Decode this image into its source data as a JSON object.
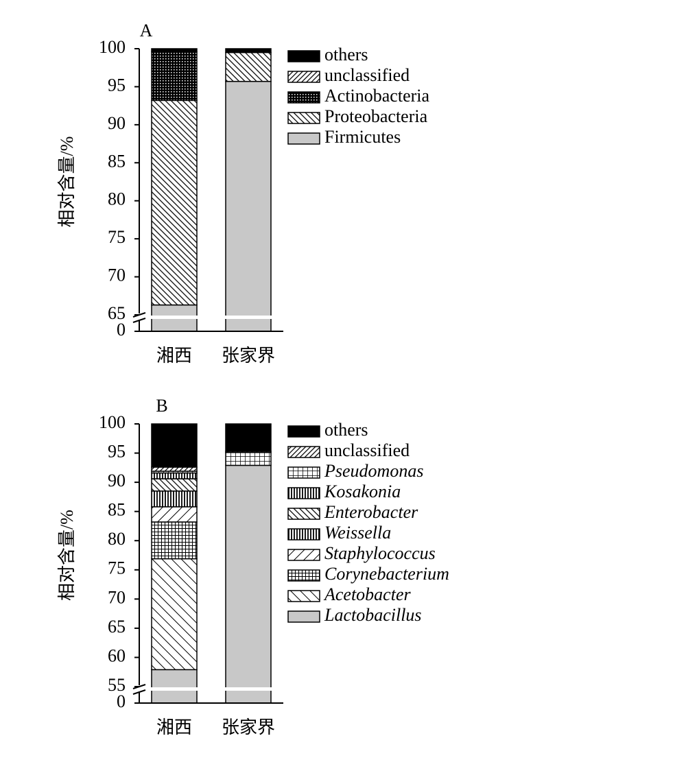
{
  "chart_data": [
    {
      "type": "bar",
      "stacked": true,
      "title": "A",
      "ylabel": "相对含量/%",
      "categories": [
        "湘西",
        "张家界"
      ],
      "ylim": [
        0,
        100
      ],
      "ybreak": [
        0,
        65
      ],
      "yticks": [
        0,
        65,
        70,
        75,
        80,
        85,
        90,
        95,
        100
      ],
      "series": [
        {
          "name": "Firmicutes",
          "color": "#c8c8c8",
          "pattern": "solid",
          "values": [
            66.3,
            95.7
          ]
        },
        {
          "name": "Proteobacteria",
          "color": "#000000",
          "pattern": "diag-down",
          "values": [
            26.9,
            3.8
          ]
        },
        {
          "name": "Actinobacteria",
          "color": "#000000",
          "pattern": "dots",
          "values": [
            6.4,
            0
          ]
        },
        {
          "name": "unclassified",
          "color": "#000000",
          "pattern": "diag-up-dense",
          "values": [
            0,
            0
          ]
        },
        {
          "name": "others",
          "color": "#000000",
          "pattern": "solid",
          "values": [
            0.4,
            0.5
          ]
        }
      ]
    },
    {
      "type": "bar",
      "stacked": true,
      "title": "B",
      "ylabel": "相对含量/%",
      "categories": [
        "湘西",
        "张家界"
      ],
      "ylim": [
        0,
        100
      ],
      "ybreak": [
        0,
        55
      ],
      "yticks": [
        0,
        55,
        60,
        65,
        70,
        75,
        80,
        85,
        90,
        95,
        100
      ],
      "series": [
        {
          "name": "Lactobacillus",
          "color": "#c8c8c8",
          "pattern": "solid",
          "italic": true,
          "values": [
            57.9,
            92.9
          ]
        },
        {
          "name": "Acetobacter",
          "color": "#000000",
          "pattern": "diag-down-wide",
          "italic": true,
          "values": [
            19.0,
            0
          ]
        },
        {
          "name": "Corynebacterium",
          "color": "#000000",
          "pattern": "grid",
          "italic": true,
          "values": [
            6.3,
            0
          ]
        },
        {
          "name": "Staphylococcus",
          "color": "#000000",
          "pattern": "diag-up",
          "italic": true,
          "values": [
            2.6,
            0
          ]
        },
        {
          "name": "Weissella",
          "color": "#000000",
          "pattern": "vertical",
          "italic": true,
          "values": [
            2.7,
            0
          ]
        },
        {
          "name": "Enterobacter",
          "color": "#000000",
          "pattern": "diag-down",
          "italic": true,
          "values": [
            2.1,
            0
          ]
        },
        {
          "name": "Kosakonia",
          "color": "#000000",
          "pattern": "vertical",
          "italic": true,
          "values": [
            1.0,
            0
          ]
        },
        {
          "name": "Pseudomonas",
          "color": "#000000",
          "pattern": "grid-wide",
          "italic": true,
          "values": [
            0.3,
            2.2
          ]
        },
        {
          "name": "unclassified",
          "color": "#000000",
          "pattern": "diag-up-dense",
          "values": [
            0.7,
            0.2
          ]
        },
        {
          "name": "others",
          "color": "#000000",
          "pattern": "solid",
          "values": [
            7.4,
            4.7
          ]
        }
      ]
    }
  ]
}
